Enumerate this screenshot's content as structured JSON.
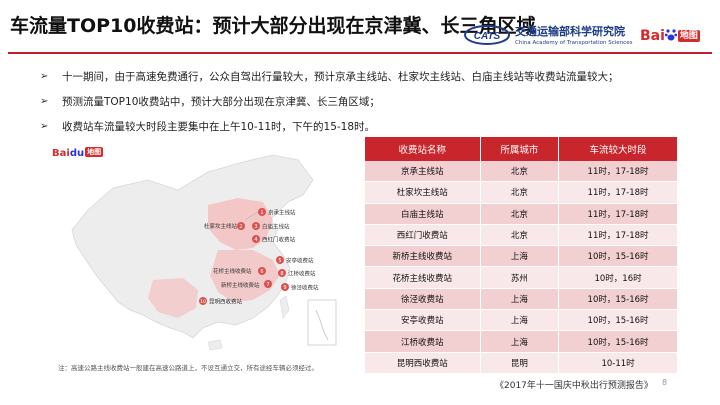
{
  "header": {
    "title": "车流量TOP10收费站：预计大部分出现在京津冀、长三角区域",
    "org_logo_text": "CATS",
    "org_name_cn": "交通运输部科学研究院",
    "org_name_en": "China Academy of Transportation Sciences",
    "baidu_bai": "Bai",
    "baidu_du": "du",
    "baidu_ditu": "地图"
  },
  "bullets": [
    "十一期间，由于高速免费通行，公众自驾出行量较大，预计京承主线站、杜家坎主线站、白庙主线站等收费站流量较大；",
    "预测流量TOP10收费站中，预计大部分出现在京津冀、长三角区域；",
    "收费站车流量较大时段主要集中在上午10-11时，下午的15-18时。"
  ],
  "bullet_marker": "➢",
  "map": {
    "watermark_bai": "Bai",
    "watermark_du": "du",
    "watermark_ditu": "地图",
    "stations": [
      {
        "num": "1",
        "label": "京承主线站"
      },
      {
        "num": "2",
        "label": "杜家坎主线站"
      },
      {
        "num": "3",
        "label": "白庙主线站"
      },
      {
        "num": "4",
        "label": "西红门收费站"
      },
      {
        "num": "5",
        "label": "安亭收费站"
      },
      {
        "num": "6",
        "label": "花桥主线收费站"
      },
      {
        "num": "7",
        "label": "新桥主线收费站"
      },
      {
        "num": "8",
        "label": "江桥收费站"
      },
      {
        "num": "9",
        "label": "徐泾收费站"
      },
      {
        "num": "10",
        "label": "昆明西收费站"
      }
    ],
    "footnote": "注：高速公路主线收费站一般建在高速公路道上，不设互通立交，所有途经车辆必须经过。"
  },
  "table": {
    "headers": [
      "收费站名称",
      "所属城市",
      "车流较大时段"
    ],
    "rows": [
      [
        "京承主线站",
        "北京",
        "11时，17-18时"
      ],
      [
        "杜家坎主线站",
        "北京",
        "11时，17-18时"
      ],
      [
        "白庙主线站",
        "北京",
        "11时，17-18时"
      ],
      [
        "西红门收费站",
        "北京",
        "11时，17-18时"
      ],
      [
        "新桥主线收费站",
        "上海",
        "10时，15-16时"
      ],
      [
        "花桥主线收费站",
        "苏州",
        "10时，16时"
      ],
      [
        "徐泾收费站",
        "上海",
        "10时，15-16时"
      ],
      [
        "安亭收费站",
        "上海",
        "10时，15-16时"
      ],
      [
        "江桥收费站",
        "上海",
        "10时，15-16时"
      ],
      [
        "昆明西收费站",
        "昆明",
        "10-11时"
      ]
    ]
  },
  "footer": {
    "report": "《2017年十一国庆中秋出行预测报告》",
    "page": "8"
  },
  "colors": {
    "accent": "#c8252c",
    "row_odd": "#f2cfd1",
    "row_even": "#f9e8e9",
    "map_land": "#ededed",
    "map_hot": "#f4c0c0",
    "baidu_red": "#d52b2b",
    "baidu_blue": "#2932e1",
    "org_blue": "#1f3c88"
  }
}
